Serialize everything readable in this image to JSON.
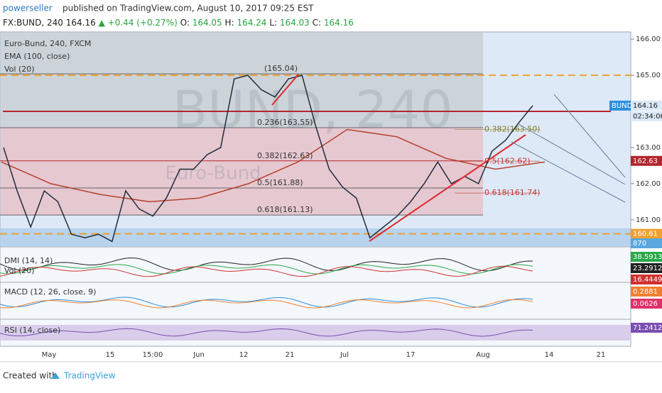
{
  "header": {
    "author": "powerseller",
    "published": "published on TradingView.com, August 10, 2017 09:25 EST",
    "symbol": "FX:BUND, 240",
    "last": "164.16",
    "change": "▲ +0.44 (+0.27%)",
    "ohlc": [
      {
        "label": "O:",
        "value": "164.05"
      },
      {
        "label": "H:",
        "value": "164.24"
      },
      {
        "label": "L:",
        "value": "164.03"
      },
      {
        "label": "C:",
        "value": "164.16"
      }
    ]
  },
  "main_panel": {
    "legend": [
      "Euro-Bund, 240, FXCM",
      "EMA (100, close)",
      "Vol (20)"
    ],
    "watermark": "BUND, 240",
    "watermark_sub": "Euro-Bund",
    "ylim": [
      160.25,
      166.2
    ],
    "yticks": [
      {
        "value": 166,
        "label": "166.00"
      },
      {
        "value": 165,
        "label": "165.00"
      },
      {
        "value": 163,
        "label": "163.00"
      },
      {
        "value": 162,
        "label": "162.00"
      },
      {
        "value": 161,
        "label": "161.00"
      }
    ],
    "closes": [
      163.0,
      161.8,
      160.8,
      161.8,
      161.5,
      160.6,
      160.5,
      160.6,
      160.4,
      161.8,
      161.3,
      161.1,
      161.6,
      162.4,
      162.4,
      162.8,
      163.0,
      164.9,
      165.0,
      164.6,
      164.4,
      164.9,
      165.0,
      163.6,
      162.4,
      161.9,
      161.6,
      160.5,
      160.8,
      161.1,
      161.5,
      162.0,
      162.6,
      162.0,
      162.2,
      162.0,
      162.9,
      163.2,
      163.7,
      164.16
    ],
    "ema": [
      162.6,
      162.0,
      161.7,
      161.5,
      161.6,
      162.0,
      162.6,
      163.5,
      163.3,
      162.7,
      162.4,
      162.6
    ],
    "fib_left": [
      {
        "label": "0.236(163.55)",
        "value": 163.55
      },
      {
        "label": "0.382(162.63)",
        "value": 162.63
      },
      {
        "label": "0.5(161.88)",
        "value": 161.88
      },
      {
        "label": "0.618(161.13)",
        "value": 161.13
      }
    ],
    "fib_top": {
      "label": "(165.04)",
      "value": 165.04
    },
    "fib_right": [
      {
        "label": "0.382(163.50)",
        "value": 163.5
      },
      {
        "label": "0.5(162.62)",
        "value": 162.62
      },
      {
        "label": "0.618(161.74)",
        "value": 161.74
      }
    ],
    "levels": {
      "resistance": 165.0,
      "support": 160.61,
      "red_line": 164.0
    },
    "tags": {
      "name": "BUND",
      "price": {
        "value": 164.16,
        "label": "164.16"
      },
      "countdown": "02:34:06",
      "ema": {
        "value": 162.63,
        "label": "162.63"
      },
      "support": {
        "value": 160.61,
        "label": "160.61"
      },
      "volume": "870"
    }
  },
  "dmi_panel": {
    "legend": [
      "DMI (14, 14)",
      "Vol (20)"
    ],
    "values": [
      "38.5913",
      "23.2912",
      "16.4449"
    ]
  },
  "macd_panel": {
    "legend": "MACD (12, 26, close, 9)",
    "values": [
      "0.2881",
      "0.0626"
    ]
  },
  "rsi_panel": {
    "legend": "RSI (14, close)",
    "value": "71.2412"
  },
  "x_axis": [
    "May",
    "15",
    "15:00",
    "Jun",
    "12",
    "21",
    "Jul",
    "17",
    "Aug",
    "14",
    "21"
  ],
  "footer": {
    "created": "Created with",
    "brand": "TradingView"
  }
}
